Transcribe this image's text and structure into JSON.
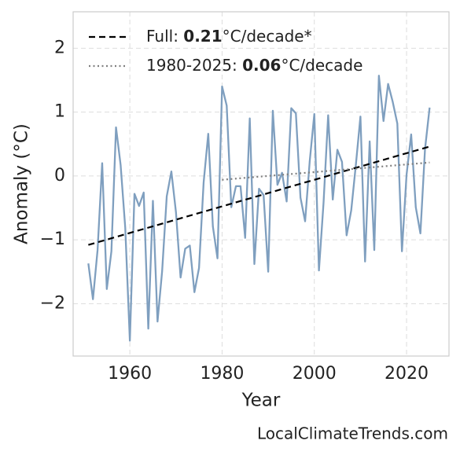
{
  "chart_data": {
    "type": "line",
    "xlabel": "Year",
    "ylabel": "Anomaly (°C)",
    "watermark": "LocalClimateTrends.com",
    "x": [
      1951,
      1952,
      1953,
      1954,
      1955,
      1956,
      1957,
      1958,
      1959,
      1960,
      1961,
      1962,
      1963,
      1964,
      1965,
      1966,
      1967,
      1968,
      1969,
      1970,
      1971,
      1972,
      1973,
      1974,
      1975,
      1976,
      1977,
      1978,
      1979,
      1980,
      1981,
      1982,
      1983,
      1984,
      1985,
      1986,
      1987,
      1988,
      1989,
      1990,
      1991,
      1992,
      1993,
      1994,
      1995,
      1996,
      1997,
      1998,
      1999,
      2000,
      2001,
      2002,
      2003,
      2004,
      2005,
      2006,
      2007,
      2008,
      2009,
      2010,
      2011,
      2012,
      2013,
      2014,
      2015,
      2016,
      2017,
      2018,
      2019,
      2020,
      2021,
      2022,
      2023,
      2024,
      2025
    ],
    "series": [
      {
        "color": "#7f9fbf",
        "values": [
          -1.37,
          -1.93,
          -1.16,
          0.2,
          -1.77,
          -1.18,
          0.76,
          0.17,
          -0.81,
          -2.58,
          -0.28,
          -0.47,
          -0.26,
          -2.39,
          -0.39,
          -2.28,
          -1.49,
          -0.32,
          0.07,
          -0.57,
          -1.59,
          -1.14,
          -1.09,
          -1.82,
          -1.44,
          -0.1,
          0.66,
          -0.79,
          -1.29,
          1.4,
          1.1,
          -0.49,
          -0.16,
          -0.16,
          -0.97,
          0.9,
          -1.38,
          -0.2,
          -0.3,
          -1.5,
          1.02,
          -0.14,
          0.05,
          -0.4,
          1.06,
          0.98,
          -0.34,
          -0.71,
          0.23,
          0.97,
          -1.48,
          -0.42,
          0.95,
          -0.37,
          0.41,
          0.22,
          -0.93,
          -0.54,
          0.17,
          0.93,
          -1.34,
          0.54,
          -1.16,
          1.57,
          0.86,
          1.44,
          1.16,
          0.82,
          -1.18,
          0.02,
          0.65,
          -0.49,
          -0.9,
          0.42,
          1.07
        ]
      }
    ],
    "trends": [
      {
        "label_prefix": "Full: ",
        "rate": 0.21,
        "label_suffix": "°C/decade*",
        "style": "dashed",
        "color": "#000000",
        "x": [
          1951,
          2025
        ],
        "values": [
          -1.08,
          0.46
        ]
      },
      {
        "label_prefix": "1980-2025: ",
        "rate": 0.06,
        "label_suffix": "°C/decade",
        "style": "dotted",
        "color": "#808080",
        "x": [
          1980,
          2025
        ],
        "values": [
          -0.06,
          0.21
        ]
      }
    ],
    "xlim": [
      1947.7,
      2029.2
    ],
    "ylim": [
      -2.82,
      2.57
    ],
    "xticks": [
      1960,
      1980,
      2000,
      2020
    ],
    "yticks": [
      {
        "value": -2,
        "label": "−2"
      },
      {
        "value": -1,
        "label": "−1"
      },
      0,
      1,
      2
    ],
    "grid": true
  }
}
